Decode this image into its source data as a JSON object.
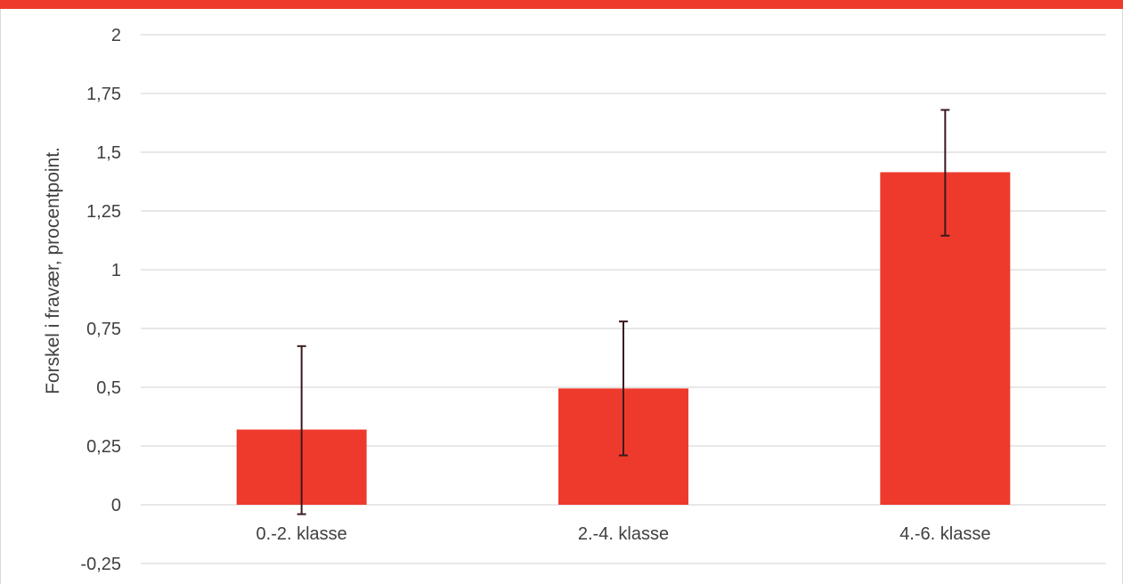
{
  "chart_data": {
    "type": "bar",
    "title": "",
    "xlabel": "",
    "ylabel": "Forskel i fravær, procentpoint.",
    "categories": [
      "0.-2. klasse",
      "2.-4. klasse",
      "4.-6. klasse"
    ],
    "values": [
      0.32,
      0.495,
      1.415
    ],
    "error_low": [
      -0.04,
      0.21,
      1.145
    ],
    "error_high": [
      0.675,
      0.78,
      1.68
    ],
    "ylim": [
      -0.25,
      2
    ],
    "y_ticks": [
      -0.25,
      0,
      0.25,
      0.5,
      0.75,
      1,
      1.25,
      1.5,
      1.75,
      2
    ],
    "y_tick_labels": [
      "-0,25",
      "0",
      "0,25",
      "0,5",
      "0,75",
      "1",
      "1,25",
      "1,5",
      "1,75",
      "2"
    ],
    "grid": true,
    "legend": "none",
    "colors": {
      "bar": "#ee3a2c",
      "error_bar": "#3b1a1e",
      "grid": "#d9d9d9",
      "top_bar": "#ee3a2c",
      "text": "#404040"
    }
  }
}
